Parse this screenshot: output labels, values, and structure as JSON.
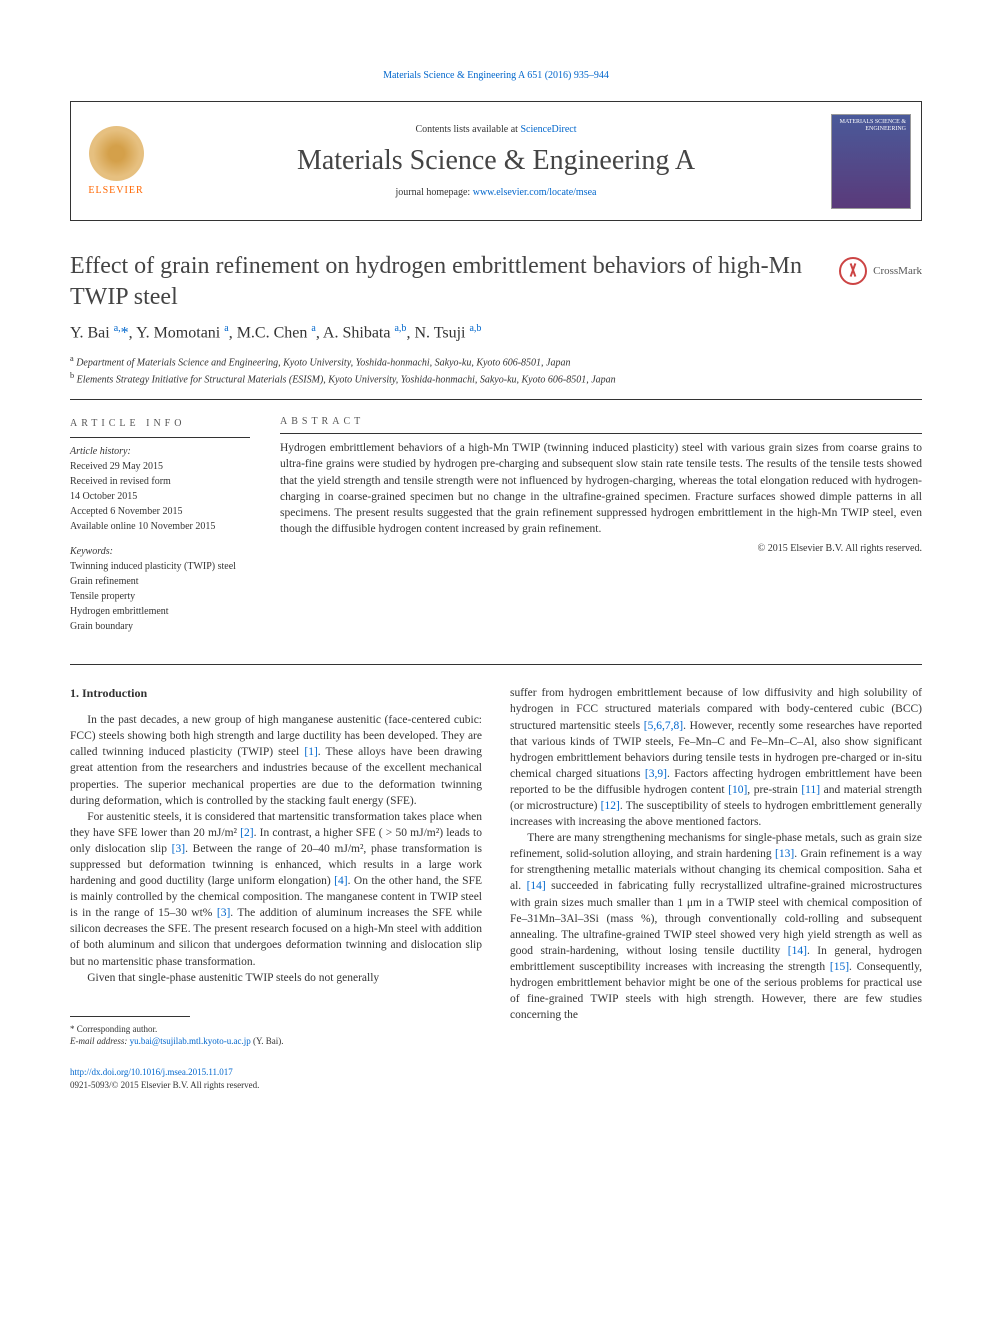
{
  "top_header": "Materials Science & Engineering A 651 (2016) 935–944",
  "journal_box": {
    "contents_prefix": "Contents lists available at ",
    "contents_link": "ScienceDirect",
    "journal_name": "Materials Science & Engineering A",
    "homepage_prefix": "journal homepage: ",
    "homepage_link": "www.elsevier.com/locate/msea",
    "elsevier_label": "ELSEVIER",
    "cover_text": "MATERIALS\nSCIENCE &\nENGINEERING"
  },
  "title": "Effect of grain refinement on hydrogen embrittlement behaviors of high-Mn TWIP steel",
  "crossmark_label": "CrossMark",
  "authors_html": "Y. Bai <sup>a,</sup><span class='star'>*</span>, Y. Momotani <sup>a</sup>, M.C. Chen <sup>a</sup>, A. Shibata <sup>a,b</sup>, N. Tsuji <sup>a,b</sup>",
  "affiliations": {
    "a": "Department of Materials Science and Engineering, Kyoto University, Yoshida-honmachi, Sakyo-ku, Kyoto 606-8501, Japan",
    "b": "Elements Strategy Initiative for Structural Materials (ESISM), Kyoto University, Yoshida-honmachi, Sakyo-ku, Kyoto 606-8501, Japan"
  },
  "article_info": {
    "head": "ARTICLE INFO",
    "history_head": "Article history:",
    "received": "Received 29 May 2015",
    "revised": "Received in revised form\n14 October 2015",
    "accepted": "Accepted 6 November 2015",
    "online": "Available online 10 November 2015",
    "keywords_head": "Keywords:",
    "keywords": [
      "Twinning induced plasticity (TWIP) steel",
      "Grain refinement",
      "Tensile property",
      "Hydrogen embrittlement",
      "Grain boundary"
    ]
  },
  "abstract": {
    "head": "ABSTRACT",
    "text": "Hydrogen embrittlement behaviors of a high-Mn TWIP (twinning induced plasticity) steel with various grain sizes from coarse grains to ultra-fine grains were studied by hydrogen pre-charging and subsequent slow stain rate tensile tests. The results of the tensile tests showed that the yield strength and tensile strength were not influenced by hydrogen-charging, whereas the total elongation reduced with hydrogen-charging in coarse-grained specimen but no change in the ultrafine-grained specimen. Fracture surfaces showed dimple patterns in all specimens. The present results suggested that the grain refinement suppressed hydrogen embrittlement in the high-Mn TWIP steel, even though the diffusible hydrogen content increased by grain refinement.",
    "copyright": "© 2015 Elsevier B.V. All rights reserved."
  },
  "section1_head": "1.  Introduction",
  "col1": {
    "p1_a": "In the past decades, a new group of high manganese austenitic (face-centered cubic: FCC) steels showing both high strength and large ductility has been developed. They are called twinning induced plasticity (TWIP) steel ",
    "p1_ref1": "[1]",
    "p1_b": ". These alloys have been drawing great attention from the researchers and industries because of the excellent mechanical properties. The superior mechanical properties are due to the deformation twinning during deformation, which is controlled by the stacking fault energy (SFE).",
    "p2_a": "For austenitic steels, it is considered that martensitic transformation takes place when they have SFE lower than 20 mJ/m² ",
    "p2_ref2": "[2]",
    "p2_b": ". In contrast, a higher SFE ( > 50 mJ/m²) leads to only dislocation slip ",
    "p2_ref3": "[3]",
    "p2_c": ". Between the range of 20–40 mJ/m², phase transformation is suppressed but deformation twinning is enhanced, which results in a large work hardening and good ductility (large uniform elongation) ",
    "p2_ref4": "[4]",
    "p2_d": ". On the other hand, the SFE is mainly controlled by the chemical composition. The manganese content in TWIP steel is in the range of 15–30 wt% ",
    "p2_ref3b": "[3]",
    "p2_e": ". The addition of aluminum increases the SFE while silicon decreases the SFE. The present research focused on a high-Mn steel with addition of both aluminum and silicon that undergoes deformation twinning and dislocation slip but no martensitic phase transformation.",
    "p3": "Given that single-phase austenitic TWIP steels do not generally"
  },
  "col2": {
    "p1_a": "suffer from hydrogen embrittlement because of low diffusivity and high solubility of hydrogen in FCC structured materials compared with body-centered cubic (BCC) structured martensitic steels ",
    "p1_ref": "[5,6,7,8]",
    "p1_b": ". However, recently some researches have reported that various kinds of TWIP steels, Fe–Mn–C and Fe–Mn–C–Al, also show significant hydrogen embrittlement behaviors during tensile tests in hydrogen pre-charged or in-situ chemical charged situations ",
    "p1_ref2": "[3,9]",
    "p1_c": ". Factors affecting hydrogen embrittlement have been reported to be the diffusible hydrogen content ",
    "p1_ref10": "[10]",
    "p1_d": ", pre-strain ",
    "p1_ref11": "[11]",
    "p1_e": " and material strength (or microstructure) ",
    "p1_ref12": "[12]",
    "p1_f": ". The susceptibility of steels to hydrogen embrittlement generally increases with increasing the above mentioned factors.",
    "p2_a": "There are many strengthening mechanisms for single-phase metals, such as grain size refinement, solid-solution alloying, and strain hardening ",
    "p2_ref13": "[13]",
    "p2_b": ". Grain refinement is a way for strengthening metallic materials without changing its chemical composition. Saha et al. ",
    "p2_ref14": "[14]",
    "p2_c": " succeeded in fabricating fully recrystallized ultrafine-grained microstructures with grain sizes much smaller than 1 μm in a TWIP steel with chemical composition of Fe–31Mn–3Al–3Si (mass %), through conventionally cold-rolling and subsequent annealing. The ultrafine-grained TWIP steel showed very high yield strength as well as good strain-hardening, without losing tensile ductility ",
    "p2_ref14b": "[14]",
    "p2_d": ". In general, hydrogen embrittlement susceptibility increases with increasing the strength ",
    "p2_ref15": "[15]",
    "p2_e": ". Consequently, hydrogen embrittlement behavior might be one of the serious problems for practical use of fine-grained TWIP steels with high strength. However, there are few studies concerning the"
  },
  "footnotes": {
    "corr": "* Corresponding author.",
    "email_label": "E-mail address: ",
    "email": "yu.bai@tsujilab.mtl.kyoto-u.ac.jp",
    "email_suffix": " (Y. Bai)."
  },
  "doi": {
    "link": "http://dx.doi.org/10.1016/j.msea.2015.11.017",
    "issn_line": "0921-5093/© 2015 Elsevier B.V. All rights reserved."
  },
  "colors": {
    "link": "#0066cc",
    "text": "#333333",
    "heading": "#444444",
    "elsevier_orange": "#ff6600"
  }
}
